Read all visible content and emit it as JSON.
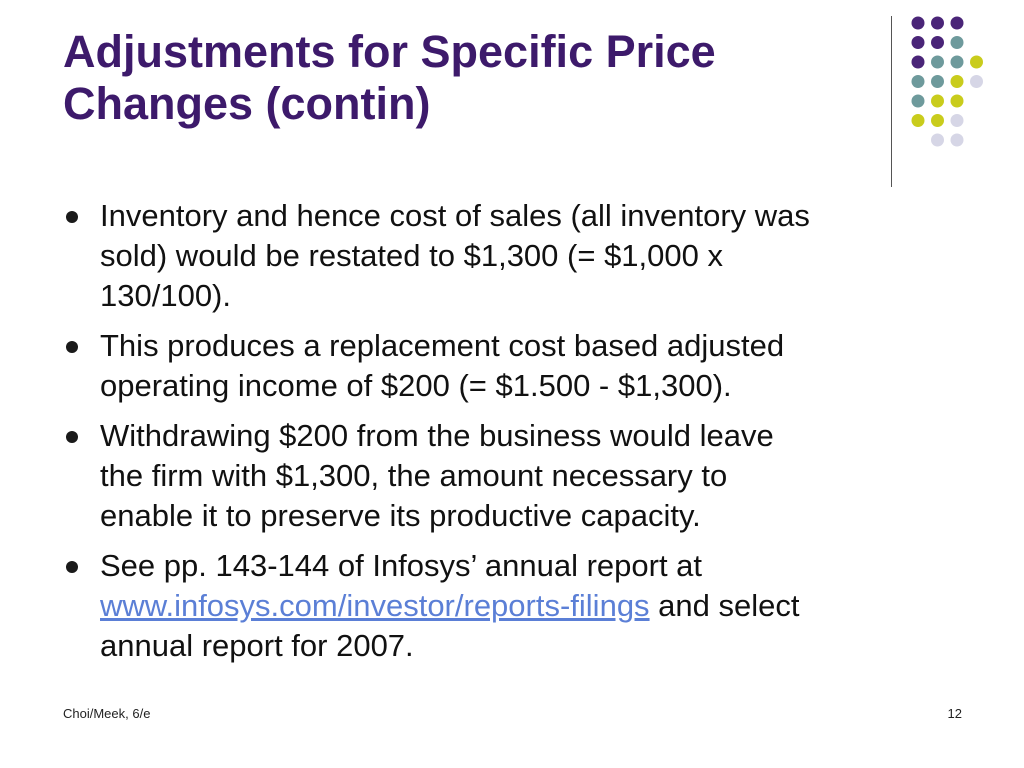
{
  "slide": {
    "title_lines": [
      "Adjustments for Specific Price",
      "Changes (contin)"
    ],
    "bullets": [
      {
        "lines": [
          "Inventory and hence cost of sales (all inventory was",
          "sold) would be restated to $1,300 (= $1,000 x",
          "130/100)."
        ]
      },
      {
        "lines": [
          "This produces a replacement cost based  adjusted",
          "operating income of $200 (= $1.500 - $1,300)."
        ]
      },
      {
        "lines": [
          "Withdrawing $200 from the business would leave",
          "the firm with $1,300, the amount necessary to",
          "enable it to preserve its productive capacity."
        ]
      },
      {
        "line1": "See pp. 143-144 of Infosys’ annual report at",
        "link_text": "www.infosys.com/investor/reports-filings",
        "after_link": " and select",
        "line3": "annual report for 2007."
      }
    ],
    "footer_left": "Choi/Meek, 6/e",
    "page_number": "12"
  },
  "colors": {
    "title": "#3d1a6b",
    "link": "#5b7fd6",
    "dot_purple": "#4a2578",
    "dot_teal": "#6e9a9c",
    "dot_yellow": "#c9cc1c",
    "dot_lavender": "#d6d6e6"
  },
  "decoration": {
    "dot_grid_colors": [
      [
        "",
        "purple",
        "purple",
        "purple",
        ""
      ],
      [
        "",
        "purple",
        "purple",
        "teal",
        ""
      ],
      [
        "",
        "purple",
        "teal",
        "teal",
        "yellow"
      ],
      [
        "",
        "teal",
        "teal",
        "yellow",
        "lavender"
      ],
      [
        "",
        "teal",
        "yellow",
        "yellow",
        ""
      ],
      [
        "",
        "yellow",
        "yellow",
        "lavender",
        ""
      ],
      [
        "",
        "",
        "lavender",
        "lavender",
        ""
      ]
    ]
  }
}
